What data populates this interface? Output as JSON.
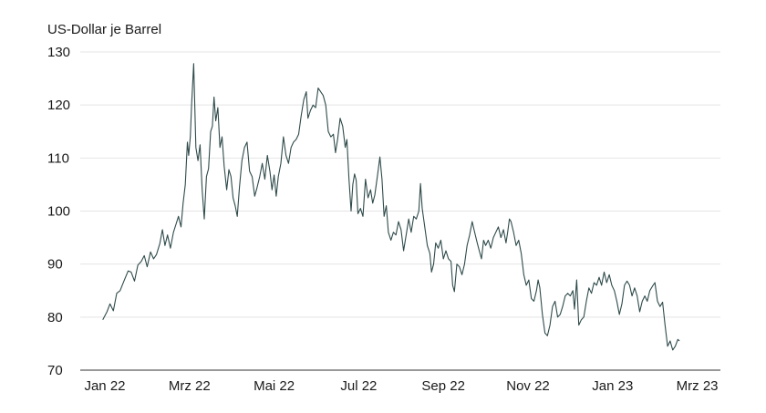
{
  "chart_data": {
    "type": "line",
    "title": "",
    "ylabel": "US-Dollar je Barrel",
    "xlabel": "",
    "ylim": [
      70,
      130
    ],
    "yticks": [
      70,
      80,
      90,
      100,
      110,
      120,
      130
    ],
    "grid": "horizontal",
    "line_color": "#2f4a4a",
    "xticks": [
      {
        "label": "Jan 22",
        "x": 0
      },
      {
        "label": "Mrz 22",
        "x": 2
      },
      {
        "label": "Mai 22",
        "x": 4
      },
      {
        "label": "Jul 22",
        "x": 6
      },
      {
        "label": "Sep 22",
        "x": 8
      },
      {
        "label": "Nov 22",
        "x": 10
      },
      {
        "label": "Jan 23",
        "x": 12
      },
      {
        "label": "Mrz 23",
        "x": 14
      }
    ],
    "xlim": [
      -0.3,
      14.25
    ],
    "series": [
      {
        "name": "",
        "points": [
          [
            -0.05,
            79.5
          ],
          [
            0.05,
            81.0
          ],
          [
            0.12,
            82.5
          ],
          [
            0.2,
            81.2
          ],
          [
            0.28,
            84.5
          ],
          [
            0.36,
            85.0
          ],
          [
            0.45,
            86.8
          ],
          [
            0.55,
            88.7
          ],
          [
            0.62,
            88.5
          ],
          [
            0.7,
            86.8
          ],
          [
            0.78,
            89.8
          ],
          [
            0.86,
            90.5
          ],
          [
            0.93,
            91.6
          ],
          [
            1.0,
            89.5
          ],
          [
            1.08,
            92.3
          ],
          [
            1.15,
            91.0
          ],
          [
            1.22,
            91.8
          ],
          [
            1.3,
            93.9
          ],
          [
            1.36,
            96.5
          ],
          [
            1.42,
            93.5
          ],
          [
            1.48,
            95.5
          ],
          [
            1.55,
            93.0
          ],
          [
            1.62,
            96.0
          ],
          [
            1.68,
            97.5
          ],
          [
            1.74,
            99.0
          ],
          [
            1.8,
            97.0
          ],
          [
            1.85,
            101.5
          ],
          [
            1.9,
            105.0
          ],
          [
            1.95,
            113.0
          ],
          [
            1.98,
            110.5
          ],
          [
            2.02,
            114.0
          ],
          [
            2.05,
            120.0
          ],
          [
            2.1,
            127.8
          ],
          [
            2.15,
            112.0
          ],
          [
            2.2,
            109.5
          ],
          [
            2.25,
            112.5
          ],
          [
            2.3,
            104.0
          ],
          [
            2.35,
            98.5
          ],
          [
            2.4,
            106.5
          ],
          [
            2.45,
            108.0
          ],
          [
            2.5,
            115.0
          ],
          [
            2.54,
            116.0
          ],
          [
            2.58,
            121.5
          ],
          [
            2.62,
            117.0
          ],
          [
            2.67,
            119.5
          ],
          [
            2.72,
            112.0
          ],
          [
            2.77,
            114.0
          ],
          [
            2.82,
            108.5
          ],
          [
            2.88,
            104.0
          ],
          [
            2.93,
            107.8
          ],
          [
            2.98,
            106.5
          ],
          [
            3.03,
            102.5
          ],
          [
            3.08,
            101.0
          ],
          [
            3.13,
            99.0
          ],
          [
            3.18,
            104.5
          ],
          [
            3.24,
            109.5
          ],
          [
            3.3,
            112.0
          ],
          [
            3.36,
            113.0
          ],
          [
            3.42,
            107.5
          ],
          [
            3.48,
            106.5
          ],
          [
            3.54,
            102.8
          ],
          [
            3.6,
            104.5
          ],
          [
            3.66,
            106.5
          ],
          [
            3.72,
            109.0
          ],
          [
            3.78,
            106.0
          ],
          [
            3.84,
            110.5
          ],
          [
            3.9,
            107.5
          ],
          [
            3.95,
            104.0
          ],
          [
            4.0,
            106.8
          ],
          [
            4.05,
            102.8
          ],
          [
            4.1,
            106.5
          ],
          [
            4.16,
            109.0
          ],
          [
            4.22,
            114.0
          ],
          [
            4.28,
            110.5
          ],
          [
            4.34,
            109.0
          ],
          [
            4.4,
            112.0
          ],
          [
            4.46,
            113.0
          ],
          [
            4.52,
            113.5
          ],
          [
            4.58,
            114.5
          ],
          [
            4.64,
            118.0
          ],
          [
            4.7,
            121.0
          ],
          [
            4.76,
            122.5
          ],
          [
            4.8,
            117.5
          ],
          [
            4.86,
            119.0
          ],
          [
            4.92,
            120.0
          ],
          [
            4.98,
            119.5
          ],
          [
            5.04,
            123.2
          ],
          [
            5.1,
            122.5
          ],
          [
            5.16,
            121.8
          ],
          [
            5.22,
            120.0
          ],
          [
            5.28,
            115.0
          ],
          [
            5.34,
            114.0
          ],
          [
            5.4,
            114.5
          ],
          [
            5.45,
            111.0
          ],
          [
            5.5,
            113.5
          ],
          [
            5.56,
            117.5
          ],
          [
            5.62,
            116.0
          ],
          [
            5.68,
            112.0
          ],
          [
            5.72,
            113.5
          ],
          [
            5.77,
            106.0
          ],
          [
            5.82,
            100.0
          ],
          [
            5.86,
            105.0
          ],
          [
            5.9,
            107.0
          ],
          [
            5.94,
            105.8
          ],
          [
            5.98,
            99.5
          ],
          [
            6.04,
            100.5
          ],
          [
            6.1,
            99.0
          ],
          [
            6.16,
            106.0
          ],
          [
            6.22,
            102.5
          ],
          [
            6.28,
            104.0
          ],
          [
            6.33,
            101.5
          ],
          [
            6.38,
            103.0
          ],
          [
            6.44,
            106.5
          ],
          [
            6.5,
            110.2
          ],
          [
            6.55,
            106.0
          ],
          [
            6.6,
            99.0
          ],
          [
            6.65,
            101.0
          ],
          [
            6.7,
            96.0
          ],
          [
            6.76,
            94.5
          ],
          [
            6.82,
            96.0
          ],
          [
            6.88,
            95.5
          ],
          [
            6.94,
            98.0
          ],
          [
            7.0,
            96.5
          ],
          [
            7.06,
            92.5
          ],
          [
            7.12,
            95.5
          ],
          [
            7.18,
            98.5
          ],
          [
            7.24,
            96.0
          ],
          [
            7.3,
            99.0
          ],
          [
            7.36,
            98.5
          ],
          [
            7.42,
            100.0
          ],
          [
            7.46,
            105.2
          ],
          [
            7.5,
            100.5
          ],
          [
            7.56,
            97.0
          ],
          [
            7.62,
            93.5
          ],
          [
            7.68,
            92.0
          ],
          [
            7.72,
            88.5
          ],
          [
            7.77,
            90.0
          ],
          [
            7.82,
            94.0
          ],
          [
            7.88,
            93.0
          ],
          [
            7.94,
            94.5
          ],
          [
            8.0,
            91.0
          ],
          [
            8.06,
            92.5
          ],
          [
            8.12,
            91.0
          ],
          [
            8.18,
            90.5
          ],
          [
            8.22,
            86.0
          ],
          [
            8.26,
            84.8
          ],
          [
            8.32,
            90.0
          ],
          [
            8.38,
            89.5
          ],
          [
            8.44,
            88.0
          ],
          [
            8.5,
            90.0
          ],
          [
            8.56,
            93.5
          ],
          [
            8.62,
            95.5
          ],
          [
            8.68,
            98.0
          ],
          [
            8.74,
            96.0
          ],
          [
            8.8,
            94.0
          ],
          [
            8.85,
            92.5
          ],
          [
            8.9,
            91.0
          ],
          [
            8.95,
            94.5
          ],
          [
            9.0,
            93.5
          ],
          [
            9.06,
            94.5
          ],
          [
            9.12,
            93.0
          ],
          [
            9.18,
            95.0
          ],
          [
            9.24,
            96.0
          ],
          [
            9.3,
            97.0
          ],
          [
            9.36,
            95.0
          ],
          [
            9.42,
            96.5
          ],
          [
            9.48,
            94.0
          ],
          [
            9.52,
            96.0
          ],
          [
            9.56,
            98.5
          ],
          [
            9.6,
            98.0
          ],
          [
            9.66,
            96.0
          ],
          [
            9.72,
            93.5
          ],
          [
            9.78,
            94.5
          ],
          [
            9.84,
            92.0
          ],
          [
            9.9,
            88.0
          ],
          [
            9.96,
            86.0
          ],
          [
            10.02,
            87.0
          ],
          [
            10.08,
            83.5
          ],
          [
            10.14,
            83.0
          ],
          [
            10.2,
            85.0
          ],
          [
            10.24,
            87.0
          ],
          [
            10.28,
            85.5
          ],
          [
            10.34,
            80.5
          ],
          [
            10.4,
            77.0
          ],
          [
            10.46,
            76.5
          ],
          [
            10.52,
            78.5
          ],
          [
            10.58,
            82.0
          ],
          [
            10.64,
            83.0
          ],
          [
            10.7,
            80.0
          ],
          [
            10.76,
            80.5
          ],
          [
            10.82,
            82.0
          ],
          [
            10.88,
            84.0
          ],
          [
            10.94,
            84.5
          ],
          [
            11.0,
            84.0
          ],
          [
            11.06,
            85.0
          ],
          [
            11.1,
            81.5
          ],
          [
            11.15,
            87.0
          ],
          [
            11.2,
            78.5
          ],
          [
            11.26,
            79.5
          ],
          [
            11.32,
            80.0
          ],
          [
            11.38,
            83.0
          ],
          [
            11.44,
            85.5
          ],
          [
            11.5,
            84.5
          ],
          [
            11.56,
            86.5
          ],
          [
            11.62,
            86.0
          ],
          [
            11.68,
            87.5
          ],
          [
            11.74,
            86.0
          ],
          [
            11.8,
            88.5
          ],
          [
            11.86,
            86.5
          ],
          [
            11.92,
            88.0
          ],
          [
            11.98,
            86.0
          ],
          [
            12.04,
            85.0
          ],
          [
            12.1,
            83.0
          ],
          [
            12.16,
            80.5
          ],
          [
            12.22,
            82.5
          ],
          [
            12.28,
            86.0
          ],
          [
            12.34,
            86.8
          ],
          [
            12.4,
            86.0
          ],
          [
            12.46,
            84.0
          ],
          [
            12.52,
            85.5
          ],
          [
            12.58,
            84.0
          ],
          [
            12.64,
            81.0
          ],
          [
            12.7,
            83.0
          ],
          [
            12.76,
            84.0
          ],
          [
            12.82,
            83.0
          ],
          [
            12.88,
            85.0
          ],
          [
            12.94,
            85.8
          ],
          [
            13.0,
            86.5
          ],
          [
            13.06,
            83.0
          ],
          [
            13.12,
            82.0
          ],
          [
            13.18,
            82.8
          ],
          [
            13.24,
            78.5
          ],
          [
            13.3,
            74.5
          ],
          [
            13.36,
            75.5
          ],
          [
            13.42,
            73.8
          ],
          [
            13.48,
            74.5
          ],
          [
            13.54,
            75.8
          ],
          [
            13.58,
            75.5
          ]
        ]
      }
    ]
  }
}
